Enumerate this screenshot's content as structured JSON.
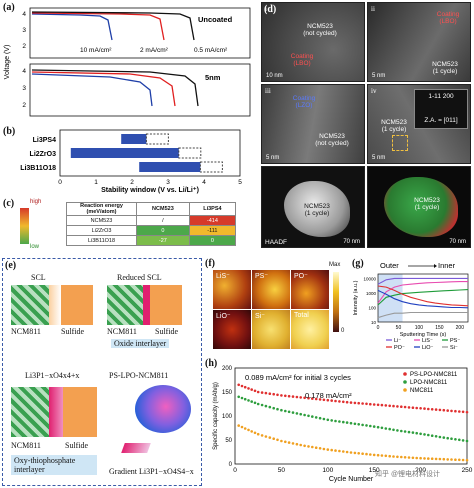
{
  "panels": {
    "a": {
      "label": "(a)"
    },
    "b": {
      "label": "(b)"
    },
    "c": {
      "label": "(c)"
    },
    "d": {
      "label": "(d)"
    },
    "e": {
      "label": "(e)"
    },
    "f": {
      "label": "(f)"
    },
    "g": {
      "label": "(g)"
    },
    "h": {
      "label": "(h)"
    }
  },
  "a": {
    "ylabel": "Voltage (V)",
    "uncoated_label": "Uncoated",
    "coated_label": "5nm",
    "rate_labels": [
      "10 mA/cm²",
      "2 mA/cm²",
      "0.5 mA/cm²"
    ],
    "yticks_top": [
      "4",
      "3",
      "2"
    ],
    "yticks_bottom": [
      "4",
      "3",
      "2"
    ],
    "colors": {
      "c10": "#1f3fa8",
      "c2": "#e02020",
      "c05": "#111111"
    }
  },
  "b": {
    "rows": [
      "Li3PS4",
      "Li2ZrO3",
      "Li3B11O18"
    ],
    "xticks": [
      "0",
      "1",
      "2",
      "3",
      "4",
      "5"
    ],
    "xlabel": "Stability window (V vs. Li/Li⁺)",
    "bar_color": "#2f4fb0"
  },
  "c": {
    "scale_high": "high",
    "scale_low": "low",
    "header": [
      "Reaction energy (meV/atom)",
      "NCM523",
      "Li3PS4"
    ],
    "rows": [
      {
        "name": "NCM523",
        "ncm": "/",
        "lps": "-414"
      },
      {
        "name": "Li2ZrO3",
        "ncm": "0",
        "lps": "-111"
      },
      {
        "name": "Li3B11O18",
        "ncm": "-27",
        "lps": "0"
      }
    ],
    "cell_colors": {
      "hi": "#d63a2a",
      "mid": "#f0b92c",
      "low": "#4ca84a"
    }
  },
  "d": {
    "tiles": [
      {
        "index": "i",
        "lines": [
          "NCM523",
          "(not cycled)"
        ],
        "coat": "Coating",
        "coat2": "(LBO)",
        "scale": "10 nm"
      },
      {
        "index": "ii",
        "lines": [
          "NCM523",
          "(1 cycle)"
        ],
        "coat": "Coating",
        "coat2": "(LBO)",
        "scale": "5 nm"
      },
      {
        "index": "iii",
        "lines": [
          "NCM523",
          "(not cycled)"
        ],
        "coat": "Coating",
        "coat2": "(LZO)",
        "scale": "5 nm"
      },
      {
        "index": "iv",
        "lines": [
          "NCM523",
          "(1 cycle)"
        ],
        "coat": "Z.A. = [011]",
        "coat2": "1-11  200",
        "scale": "5 nm"
      },
      {
        "index": "v",
        "lines": [
          "NCM523",
          "(1 cycle)"
        ],
        "coat": "HAADF",
        "coat2": "",
        "scale": "70 nm"
      },
      {
        "index": "vi",
        "lines": [
          "NCM523",
          "(1 cycle)"
        ],
        "coat": "",
        "coat2": "",
        "scale": "70 nm"
      }
    ]
  },
  "e": {
    "top_left": {
      "interface": "SCL",
      "cathode": "NCM811",
      "electrolyte": "Sulfide"
    },
    "top_right": {
      "interface": "Reduced SCL",
      "cathode": "NCM811",
      "electrolyte": "Sulfide",
      "caption": "Oxide interlayer"
    },
    "bottom_left": {
      "formula": "Li3P1−xO4x4+x",
      "cathode": "NCM811",
      "electrolyte": "Sulfide",
      "caption": "Oxy-thiophosphate interlayer"
    },
    "bottom_right": {
      "title": "PS-LPO-NCM811",
      "caption": "Gradient Li3P1−xO4S4−x"
    }
  },
  "f": {
    "tiles": [
      "LiS⁻",
      "PS⁻",
      "PO⁻",
      "LiO⁻",
      "Si⁻",
      "Total"
    ],
    "scale_max": "Max",
    "scale_min": "0"
  },
  "g": {
    "header_left": "Outer",
    "header_right": "Inner",
    "xlabel": "Sputtering Time (s)",
    "ylabel": "Intensity (a.u.)",
    "xticks": [
      "0",
      "50",
      "100",
      "150",
      "200"
    ],
    "yticks": [
      "10000",
      "1000",
      "100",
      "10"
    ],
    "legend": [
      "Li⁻",
      "LiS⁻",
      "PS⁻",
      "PO⁻",
      "LiO⁻",
      "Si⁻"
    ],
    "colors": [
      "#7a5ad8",
      "#e84bb0",
      "#1f9c3a",
      "#e03030",
      "#2040c0",
      "#999999"
    ]
  },
  "h": {
    "note1": "0.089 mA/cm² for initial 3 cycles",
    "note2": "0.178 mA/cm²",
    "ylabel": "Specific capacity (mAh/g)",
    "xlabel": "Cycle Number",
    "xticks": [
      "0",
      "50",
      "100",
      "150",
      "200",
      "250"
    ],
    "yticks": [
      "0",
      "50",
      "100",
      "150",
      "200"
    ],
    "legend": [
      "PS-LPO-NMC811",
      "LPO-NMC811",
      "NMC811"
    ],
    "colors": [
      "#e03030",
      "#2e9e3e",
      "#f0a020"
    ],
    "watermark": "知乎 @锂电材料设计"
  },
  "chart_data": [
    {
      "type": "bar",
      "title": "",
      "categories": [
        "Li3PS4",
        "Li2ZrO3",
        "Li3B11O18"
      ],
      "xlabel": "Stability window (V vs. Li/Li⁺)",
      "xlim": [
        0,
        5
      ],
      "series": [
        {
          "name": "",
          "ranges": [
            [
              1.7,
              2.4
            ],
            [
              0.3,
              3.3
            ],
            [
              2.2,
              3.9
            ]
          ]
        }
      ]
    },
    {
      "type": "line",
      "xlabel": "Sputtering Time (s)",
      "ylabel": "Intensity (a.u.)",
      "xlim": [
        0,
        220
      ],
      "yscale": "log",
      "ylim": [
        10,
        20000
      ],
      "x": [
        0,
        20,
        40,
        60,
        80,
        100,
        120,
        140,
        160,
        180,
        200,
        220
      ],
      "series": [
        {
          "name": "Li⁻",
          "values": [
            4000,
            8000,
            10000,
            10000,
            10000,
            10000,
            10000,
            10000,
            10000,
            10000,
            10000,
            10000
          ]
        },
        {
          "name": "LiS⁻",
          "values": [
            200,
            1200,
            2500,
            3500,
            4000,
            4500,
            5000,
            5200,
            5500,
            5800,
            6000,
            6000
          ]
        },
        {
          "name": "PS⁻",
          "values": [
            150,
            500,
            700,
            900,
            1000,
            1100,
            1200,
            1300,
            1400,
            1500,
            1600,
            1700
          ]
        },
        {
          "name": "PO⁻",
          "values": [
            3000,
            2500,
            1500,
            800,
            500,
            350,
            250,
            200,
            170,
            150,
            140,
            130
          ]
        },
        {
          "name": "LiO⁻",
          "values": [
            1500,
            800,
            400,
            250,
            180,
            150,
            130,
            120,
            110,
            100,
            100,
            95
          ]
        },
        {
          "name": "Si⁻",
          "values": [
            20,
            30,
            40,
            40,
            45,
            45,
            45,
            45,
            45,
            45,
            45,
            45
          ]
        }
      ]
    },
    {
      "type": "scatter",
      "xlabel": "Cycle Number",
      "ylabel": "Specific capacity (mAh/g)",
      "xlim": [
        0,
        250
      ],
      "ylim": [
        0,
        200
      ],
      "x": [
        4,
        25,
        50,
        75,
        100,
        125,
        150,
        175,
        200,
        225,
        250
      ],
      "series": [
        {
          "name": "PS-LPO-NMC811",
          "values": [
            165,
            150,
            143,
            138,
            133,
            128,
            124,
            120,
            116,
            112,
            108
          ]
        },
        {
          "name": "LPO-NMC811",
          "values": [
            140,
            125,
            112,
            102,
            92,
            85,
            78,
            70,
            63,
            55,
            48
          ]
        },
        {
          "name": "NMC811",
          "values": [
            80,
            62,
            48,
            38,
            30,
            24,
            19,
            15,
            12,
            10,
            8
          ]
        }
      ]
    }
  ]
}
